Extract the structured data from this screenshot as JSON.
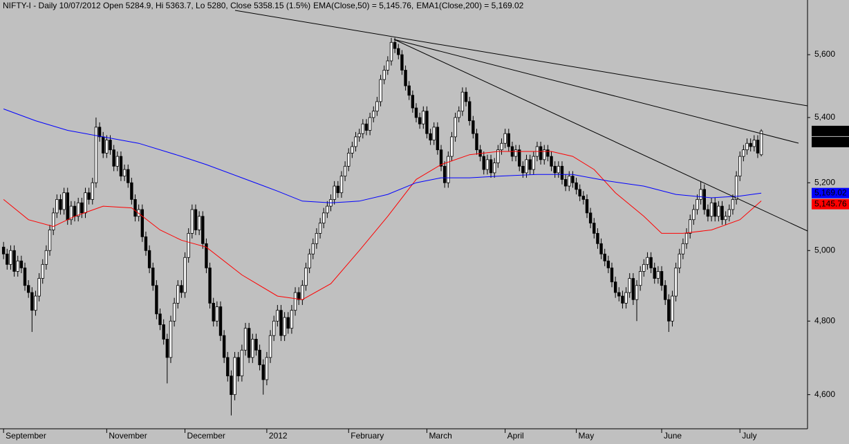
{
  "chart_data": {
    "type": "candlestick",
    "title": "NIFTY-I - Daily 10/07/2012 Open 5284.9, Hi 5363.7, Lo 5280, Close 5358.15 (1.5%)",
    "log_scale": true,
    "ylim": [
      4510,
      5780
    ],
    "yticks": [
      {
        "value": 4600,
        "label": "4,600"
      },
      {
        "value": 4800,
        "label": "4,800"
      },
      {
        "value": 5000,
        "label": "5,000"
      },
      {
        "value": 5200,
        "label": "5,200"
      },
      {
        "value": 5400,
        "label": "5,400"
      },
      {
        "value": 5600,
        "label": "5,600"
      }
    ],
    "xlim": [
      -1,
      226
    ],
    "xticks": [
      {
        "value": 0,
        "label": "September"
      },
      {
        "value": 29,
        "label": "November"
      },
      {
        "value": 51,
        "label": "December"
      },
      {
        "value": 74,
        "label": "2012"
      },
      {
        "value": 97,
        "label": "February"
      },
      {
        "value": 119,
        "label": "March"
      },
      {
        "value": 141,
        "label": "April"
      },
      {
        "value": 161,
        "label": "May"
      },
      {
        "value": 185,
        "label": "June"
      },
      {
        "value": 207,
        "label": "July"
      }
    ],
    "up_color": "#ffffff",
    "down_color": "#000000",
    "ohlc": [
      [
        5010,
        5025,
        4975,
        4990
      ],
      [
        4990,
        5005,
        4945,
        4960
      ],
      [
        4960,
        5015,
        4945,
        5000
      ],
      [
        5000,
        5015,
        4925,
        4940
      ],
      [
        4940,
        4985,
        4925,
        4970
      ],
      [
        4970,
        4985,
        4935,
        4950
      ],
      [
        4950,
        4965,
        4885,
        4900
      ],
      [
        4900,
        4915,
        4865,
        4880
      ],
      [
        4880,
        4895,
        4770,
        4830
      ],
      [
        4830,
        4885,
        4815,
        4870
      ],
      [
        4870,
        4935,
        4855,
        4920
      ],
      [
        4920,
        4975,
        4905,
        4960
      ],
      [
        4960,
        5015,
        4945,
        5000
      ],
      [
        5000,
        5075,
        4985,
        5060
      ],
      [
        5060,
        5125,
        5045,
        5110
      ],
      [
        5110,
        5165,
        5095,
        5150
      ],
      [
        5150,
        5165,
        5105,
        5120
      ],
      [
        5120,
        5185,
        5105,
        5170
      ],
      [
        5170,
        5185,
        5075,
        5090
      ],
      [
        5090,
        5145,
        5075,
        5130
      ],
      [
        5130,
        5145,
        5085,
        5100
      ],
      [
        5100,
        5155,
        5085,
        5140
      ],
      [
        5140,
        5155,
        5095,
        5110
      ],
      [
        5110,
        5185,
        5095,
        5170
      ],
      [
        5170,
        5185,
        5135,
        5150
      ],
      [
        5150,
        5215,
        5135,
        5200
      ],
      [
        5200,
        5400,
        5185,
        5370
      ],
      [
        5370,
        5385,
        5325,
        5340
      ],
      [
        5340,
        5355,
        5275,
        5290
      ],
      [
        5290,
        5345,
        5275,
        5330
      ],
      [
        5330,
        5345,
        5285,
        5300
      ],
      [
        5300,
        5315,
        5235,
        5250
      ],
      [
        5250,
        5295,
        5235,
        5280
      ],
      [
        5280,
        5295,
        5205,
        5220
      ],
      [
        5220,
        5255,
        5205,
        5240
      ],
      [
        5240,
        5255,
        5185,
        5200
      ],
      [
        5200,
        5215,
        5135,
        5150
      ],
      [
        5150,
        5165,
        5085,
        5100
      ],
      [
        5100,
        5135,
        5085,
        5120
      ],
      [
        5120,
        5135,
        5025,
        5040
      ],
      [
        5040,
        5055,
        4985,
        5000
      ],
      [
        5000,
        5015,
        4935,
        4950
      ],
      [
        4950,
        4965,
        4885,
        4900
      ],
      [
        4900,
        4915,
        4805,
        4820
      ],
      [
        4820,
        4835,
        4775,
        4790
      ],
      [
        4790,
        4805,
        4735,
        4750
      ],
      [
        4750,
        4765,
        4630,
        4700
      ],
      [
        4700,
        4815,
        4685,
        4800
      ],
      [
        4800,
        4865,
        4785,
        4850
      ],
      [
        4850,
        4915,
        4835,
        4900
      ],
      [
        4900,
        4915,
        4865,
        4880
      ],
      [
        4880,
        4995,
        4865,
        4980
      ],
      [
        4980,
        5065,
        4965,
        5050
      ],
      [
        5050,
        5135,
        5035,
        5120
      ],
      [
        5120,
        5135,
        5045,
        5060
      ],
      [
        5060,
        5115,
        5045,
        5100
      ],
      [
        5100,
        5115,
        5005,
        5020
      ],
      [
        5020,
        5035,
        4935,
        4950
      ],
      [
        4950,
        4965,
        4835,
        4850
      ],
      [
        4850,
        4865,
        4785,
        4800
      ],
      [
        4800,
        4855,
        4785,
        4840
      ],
      [
        4840,
        4855,
        4745,
        4760
      ],
      [
        4760,
        4775,
        4685,
        4700
      ],
      [
        4700,
        4715,
        4635,
        4650
      ],
      [
        4650,
        4665,
        4545,
        4600
      ],
      [
        4600,
        4715,
        4585,
        4700
      ],
      [
        4700,
        4715,
        4635,
        4650
      ],
      [
        4650,
        4735,
        4635,
        4720
      ],
      [
        4720,
        4795,
        4705,
        4780
      ],
      [
        4780,
        4795,
        4685,
        4700
      ],
      [
        4700,
        4765,
        4685,
        4750
      ],
      [
        4750,
        4765,
        4705,
        4720
      ],
      [
        4720,
        4735,
        4665,
        4680
      ],
      [
        4680,
        4695,
        4600,
        4640
      ],
      [
        4640,
        4715,
        4625,
        4700
      ],
      [
        4700,
        4775,
        4685,
        4760
      ],
      [
        4760,
        4815,
        4745,
        4800
      ],
      [
        4800,
        4845,
        4785,
        4830
      ],
      [
        4830,
        4845,
        4745,
        4760
      ],
      [
        4760,
        4825,
        4745,
        4810
      ],
      [
        4810,
        4825,
        4765,
        4780
      ],
      [
        4780,
        4845,
        4765,
        4830
      ],
      [
        4830,
        4895,
        4815,
        4880
      ],
      [
        4880,
        4895,
        4845,
        4860
      ],
      [
        4860,
        4915,
        4845,
        4900
      ],
      [
        4900,
        4965,
        4885,
        4950
      ],
      [
        4950,
        5005,
        4935,
        4990
      ],
      [
        4990,
        5035,
        4975,
        5020
      ],
      [
        5020,
        5065,
        5005,
        5050
      ],
      [
        5050,
        5095,
        5035,
        5080
      ],
      [
        5080,
        5125,
        5065,
        5110
      ],
      [
        5110,
        5145,
        5095,
        5130
      ],
      [
        5130,
        5165,
        5115,
        5150
      ],
      [
        5150,
        5205,
        5135,
        5190
      ],
      [
        5190,
        5205,
        5155,
        5170
      ],
      [
        5170,
        5235,
        5155,
        5220
      ],
      [
        5220,
        5265,
        5205,
        5250
      ],
      [
        5250,
        5305,
        5235,
        5290
      ],
      [
        5290,
        5325,
        5275,
        5310
      ],
      [
        5310,
        5355,
        5295,
        5340
      ],
      [
        5340,
        5365,
        5325,
        5350
      ],
      [
        5350,
        5395,
        5335,
        5380
      ],
      [
        5380,
        5395,
        5345,
        5360
      ],
      [
        5360,
        5415,
        5345,
        5400
      ],
      [
        5400,
        5435,
        5385,
        5420
      ],
      [
        5420,
        5465,
        5405,
        5450
      ],
      [
        5450,
        5535,
        5435,
        5520
      ],
      [
        5520,
        5565,
        5505,
        5550
      ],
      [
        5550,
        5595,
        5535,
        5580
      ],
      [
        5580,
        5655,
        5565,
        5640
      ],
      [
        5640,
        5655,
        5605,
        5620
      ],
      [
        5620,
        5635,
        5585,
        5600
      ],
      [
        5600,
        5615,
        5535,
        5550
      ],
      [
        5550,
        5565,
        5485,
        5500
      ],
      [
        5500,
        5515,
        5455,
        5470
      ],
      [
        5470,
        5485,
        5415,
        5430
      ],
      [
        5430,
        5445,
        5385,
        5400
      ],
      [
        5400,
        5415,
        5365,
        5380
      ],
      [
        5380,
        5435,
        5365,
        5420
      ],
      [
        5420,
        5435,
        5335,
        5350
      ],
      [
        5350,
        5365,
        5315,
        5330
      ],
      [
        5330,
        5385,
        5315,
        5370
      ],
      [
        5370,
        5385,
        5285,
        5300
      ],
      [
        5300,
        5315,
        5235,
        5250
      ],
      [
        5250,
        5265,
        5185,
        5200
      ],
      [
        5200,
        5295,
        5185,
        5280
      ],
      [
        5280,
        5355,
        5265,
        5340
      ],
      [
        5340,
        5415,
        5325,
        5400
      ],
      [
        5400,
        5435,
        5385,
        5420
      ],
      [
        5420,
        5495,
        5405,
        5480
      ],
      [
        5480,
        5495,
        5435,
        5450
      ],
      [
        5450,
        5465,
        5375,
        5390
      ],
      [
        5390,
        5405,
        5335,
        5350
      ],
      [
        5350,
        5365,
        5285,
        5300
      ],
      [
        5300,
        5315,
        5265,
        5280
      ],
      [
        5280,
        5295,
        5225,
        5240
      ],
      [
        5240,
        5285,
        5225,
        5270
      ],
      [
        5270,
        5285,
        5215,
        5230
      ],
      [
        5230,
        5275,
        5215,
        5260
      ],
      [
        5260,
        5315,
        5245,
        5300
      ],
      [
        5300,
        5335,
        5285,
        5320
      ],
      [
        5320,
        5365,
        5305,
        5350
      ],
      [
        5350,
        5365,
        5295,
        5310
      ],
      [
        5310,
        5325,
        5265,
        5280
      ],
      [
        5280,
        5315,
        5265,
        5300
      ],
      [
        5300,
        5315,
        5235,
        5250
      ],
      [
        5250,
        5265,
        5215,
        5230
      ],
      [
        5230,
        5285,
        5215,
        5270
      ],
      [
        5270,
        5285,
        5225,
        5240
      ],
      [
        5240,
        5295,
        5225,
        5280
      ],
      [
        5280,
        5325,
        5265,
        5310
      ],
      [
        5310,
        5325,
        5255,
        5270
      ],
      [
        5270,
        5315,
        5255,
        5300
      ],
      [
        5300,
        5315,
        5265,
        5280
      ],
      [
        5280,
        5295,
        5235,
        5250
      ],
      [
        5250,
        5265,
        5215,
        5230
      ],
      [
        5230,
        5265,
        5215,
        5250
      ],
      [
        5250,
        5265,
        5195,
        5210
      ],
      [
        5210,
        5225,
        5175,
        5190
      ],
      [
        5190,
        5235,
        5175,
        5220
      ],
      [
        5220,
        5235,
        5185,
        5200
      ],
      [
        5200,
        5215,
        5165,
        5180
      ],
      [
        5180,
        5195,
        5145,
        5160
      ],
      [
        5160,
        5175,
        5135,
        5150
      ],
      [
        5150,
        5165,
        5095,
        5110
      ],
      [
        5110,
        5125,
        5065,
        5080
      ],
      [
        5080,
        5095,
        5035,
        5050
      ],
      [
        5050,
        5065,
        5005,
        5020
      ],
      [
        5020,
        5035,
        4975,
        4990
      ],
      [
        4990,
        5005,
        4955,
        4970
      ],
      [
        4970,
        4985,
        4935,
        4950
      ],
      [
        4950,
        4965,
        4895,
        4910
      ],
      [
        4910,
        4925,
        4865,
        4880
      ],
      [
        4880,
        4895,
        4855,
        4870
      ],
      [
        4870,
        4885,
        4835,
        4850
      ],
      [
        4850,
        4895,
        4835,
        4880
      ],
      [
        4880,
        4935,
        4865,
        4920
      ],
      [
        4920,
        4935,
        4845,
        4860
      ],
      [
        4860,
        4915,
        4800,
        4900
      ],
      [
        4900,
        4955,
        4885,
        4940
      ],
      [
        4940,
        4975,
        4925,
        4960
      ],
      [
        4960,
        4995,
        4945,
        4980
      ],
      [
        4980,
        4995,
        4935,
        4950
      ],
      [
        4950,
        4965,
        4905,
        4920
      ],
      [
        4920,
        4955,
        4905,
        4940
      ],
      [
        4940,
        4955,
        4885,
        4900
      ],
      [
        4900,
        4915,
        4845,
        4860
      ],
      [
        4860,
        4875,
        4770,
        4800
      ],
      [
        4800,
        4885,
        4785,
        4870
      ],
      [
        4870,
        4965,
        4855,
        4950
      ],
      [
        4950,
        5005,
        4935,
        4990
      ],
      [
        4990,
        5035,
        4975,
        5020
      ],
      [
        5020,
        5065,
        5005,
        5050
      ],
      [
        5050,
        5105,
        5035,
        5090
      ],
      [
        5090,
        5135,
        5075,
        5120
      ],
      [
        5120,
        5165,
        5105,
        5150
      ],
      [
        5150,
        5205,
        5135,
        5180
      ],
      [
        5180,
        5195,
        5105,
        5120
      ],
      [
        5120,
        5135,
        5085,
        5100
      ],
      [
        5100,
        5155,
        5085,
        5140
      ],
      [
        5140,
        5155,
        5085,
        5100
      ],
      [
        5100,
        5145,
        5085,
        5130
      ],
      [
        5130,
        5145,
        5075,
        5090
      ],
      [
        5090,
        5115,
        5075,
        5100
      ],
      [
        5100,
        5135,
        5085,
        5120
      ],
      [
        5120,
        5165,
        5105,
        5150
      ],
      [
        5150,
        5235,
        5135,
        5220
      ],
      [
        5220,
        5295,
        5205,
        5280
      ],
      [
        5280,
        5315,
        5265,
        5300
      ],
      [
        5300,
        5335,
        5285,
        5320
      ],
      [
        5320,
        5335,
        5295,
        5310
      ],
      [
        5310,
        5345,
        5295,
        5330
      ],
      [
        5330,
        5345,
        5275,
        5290
      ],
      [
        5284.9,
        5363.7,
        5280,
        5358.15
      ]
    ],
    "series": [
      {
        "name": "EMA(Close,50) = 5,145.76,",
        "color": "#ff0000",
        "x": [
          0,
          7,
          14,
          20,
          28,
          36,
          44,
          50,
          57,
          67,
          77,
          84,
          92,
          100,
          108,
          116,
          123,
          131,
          139,
          147,
          154,
          160,
          166,
          172,
          180,
          185,
          191,
          199,
          207,
          213
        ],
        "values": [
          5150,
          5090,
          5070,
          5100,
          5130,
          5125,
          5060,
          5030,
          5010,
          4930,
          4870,
          4860,
          4905,
          5000,
          5100,
          5210,
          5255,
          5285,
          5295,
          5295,
          5295,
          5280,
          5240,
          5170,
          5100,
          5050,
          5050,
          5060,
          5090,
          5145.76
        ]
      },
      {
        "name": "EMA1(Close,200) = 5,169.02",
        "color": "#0000ff",
        "x": [
          0,
          9,
          18,
          28,
          38,
          50,
          57,
          67,
          77,
          84,
          92,
          100,
          108,
          116,
          123,
          131,
          139,
          150,
          160,
          170,
          180,
          189,
          199,
          207,
          213
        ],
        "values": [
          5427,
          5390,
          5360,
          5340,
          5320,
          5280,
          5255,
          5215,
          5175,
          5145,
          5140,
          5145,
          5165,
          5200,
          5215,
          5215,
          5220,
          5225,
          5225,
          5205,
          5190,
          5165,
          5155,
          5160,
          5169.02
        ]
      }
    ],
    "price_labels": [
      {
        "value": 5358.15,
        "label": "5,358.15",
        "color": "#000000"
      },
      {
        "value": 5358.15,
        "label": "5,358.15",
        "color": "#000000"
      },
      {
        "value": 5169.02,
        "label": "5,169.02",
        "color": "#0000ff"
      },
      {
        "value": 5145.76,
        "label": "5,145.76",
        "color": "#ff0000"
      }
    ]
  }
}
